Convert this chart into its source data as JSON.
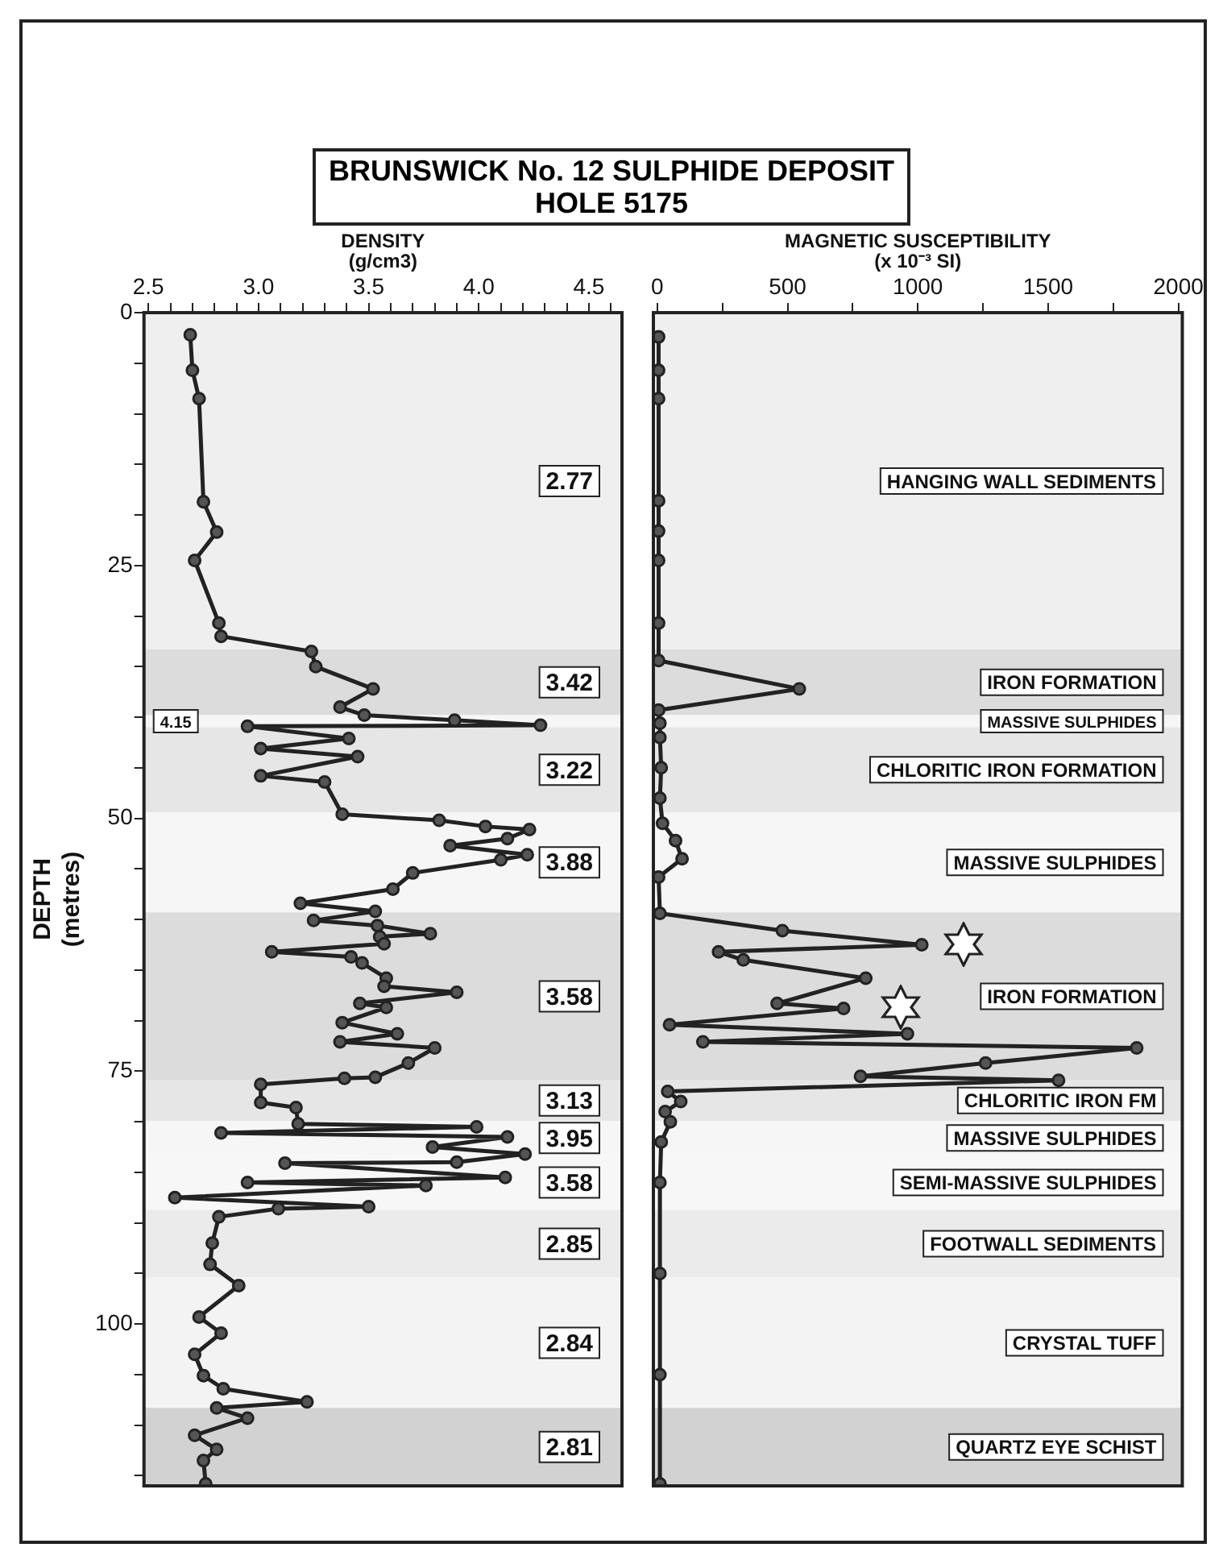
{
  "chart_data": [
    {
      "type": "line",
      "title": "BRUNSWICK No. 12 SULPHIDE DEPOSIT",
      "subtitle": "HOLE 5175",
      "xlabel": "DENSITY\n(g/cm3)",
      "ylabel": "DEPTH\n(metres)",
      "xlim": [
        2.48,
        4.65
      ],
      "xticks": [
        {
          "value": 2.5,
          "label": "2.5"
        },
        {
          "value": 2.6,
          "label": null
        },
        {
          "value": 2.7,
          "label": null
        },
        {
          "value": 2.8,
          "label": null
        },
        {
          "value": 2.9,
          "label": null
        },
        {
          "value": 3,
          "label": "3.0"
        },
        {
          "value": 3.1,
          "label": null
        },
        {
          "value": 3.2,
          "label": null
        },
        {
          "value": 3.3,
          "label": null
        },
        {
          "value": 3.4,
          "label": null
        },
        {
          "value": 3.5,
          "label": "3.5"
        },
        {
          "value": 3.6,
          "label": null
        },
        {
          "value": 3.7,
          "label": null
        },
        {
          "value": 3.8,
          "label": null
        },
        {
          "value": 3.9,
          "label": null
        },
        {
          "value": 4,
          "label": "4.0"
        },
        {
          "value": 4.1,
          "label": null
        },
        {
          "value": 4.2,
          "label": null
        },
        {
          "value": 4.3,
          "label": null
        },
        {
          "value": 4.4,
          "label": null
        },
        {
          "value": 4.5,
          "label": "4.5"
        },
        {
          "value": 4.6,
          "label": null
        }
      ],
      "ylim": [
        116,
        0
      ],
      "yticks": [
        0,
        {
          "value": 5,
          "label": null
        },
        {
          "value": 10,
          "label": null
        },
        {
          "value": 15,
          "label": null
        },
        {
          "value": 20,
          "label": null
        },
        25,
        {
          "value": 30,
          "label": null
        },
        {
          "value": 35,
          "label": null
        },
        {
          "value": 40,
          "label": null
        },
        {
          "value": 45,
          "label": null
        },
        50,
        {
          "value": 55,
          "label": null
        },
        {
          "value": 60,
          "label": null
        },
        {
          "value": 65,
          "label": null
        },
        {
          "value": 70,
          "label": null
        },
        75,
        {
          "value": 80,
          "label": null
        },
        {
          "value": 85,
          "label": null
        },
        {
          "value": 90,
          "label": null
        },
        {
          "value": 95,
          "label": null
        },
        100,
        {
          "value": 105,
          "label": null
        },
        {
          "value": 110,
          "label": null
        },
        {
          "value": 115,
          "label": null
        }
      ],
      "grid": false,
      "legend": false,
      "marker": "circle",
      "line_style": "solid",
      "series": [
        {
          "color": "#222222",
          "x": [
            2.69,
            2.7,
            2.73,
            2.75,
            2.81,
            2.71,
            2.82,
            2.83,
            3.24,
            3.26,
            3.52,
            3.37,
            3.48,
            3.89,
            4.28,
            2.95,
            3.41,
            3.01,
            3.45,
            3.01,
            3.3,
            3.38,
            3.82,
            4.03,
            4.23,
            4.13,
            3.87,
            4.22,
            4.1,
            3.7,
            3.61,
            3.19,
            3.53,
            3.25,
            3.54,
            3.78,
            3.55,
            3.57,
            3.06,
            3.42,
            3.47,
            3.58,
            3.57,
            3.9,
            3.46,
            3.58,
            3.38,
            3.63,
            3.37,
            3.8,
            3.68,
            3.53,
            3.39,
            3.01,
            3.01,
            3.17,
            3.18,
            3.99,
            2.83,
            4.13,
            3.79,
            4.21,
            3.9,
            3.12,
            4.12,
            2.95,
            3.76,
            2.62,
            3.5,
            3.09,
            2.82,
            2.79,
            2.78,
            2.91,
            2.73,
            2.83,
            2.71,
            2.75,
            2.84,
            3.22,
            2.81,
            2.95,
            2.71,
            2.81,
            2.75,
            2.76
          ],
          "values": [
            2.2,
            5.7,
            8.5,
            18.7,
            21.7,
            24.5,
            30.7,
            32,
            33.5,
            35,
            37.2,
            39,
            39.8,
            40.3,
            40.8,
            40.9,
            42.1,
            43.1,
            43.9,
            45.8,
            46.4,
            49.6,
            50.2,
            50.8,
            51.1,
            52,
            52.7,
            53.6,
            54.1,
            55.4,
            57,
            58.4,
            59.2,
            60.1,
            60.6,
            61.4,
            61.7,
            62.4,
            63.2,
            63.7,
            64.3,
            65.8,
            66.6,
            67.2,
            68.3,
            68.7,
            70.2,
            71.3,
            72.1,
            72.7,
            74.2,
            75.6,
            75.7,
            76.3,
            78.1,
            78.6,
            80.2,
            80.5,
            81.1,
            81.5,
            82.5,
            83.2,
            84,
            84.1,
            85.5,
            86,
            86.3,
            87.5,
            88.4,
            88.6,
            89.4,
            92,
            94.1,
            96.2,
            99.3,
            100.9,
            103,
            105.1,
            106.4,
            107.7,
            108.3,
            109.3,
            111,
            112.4,
            113.5,
            115.8
          ]
        }
      ],
      "bands": [
        {
          "axis": "y",
          "from": 0,
          "to": 33.3,
          "label": "2.77",
          "color": "#efefef"
        },
        {
          "axis": "y",
          "from": 33.3,
          "to": 39.8,
          "label": "3.42",
          "color": "#dcdcdc"
        },
        {
          "axis": "y",
          "from": 39.8,
          "to": 41,
          "label": "4.15",
          "color": "#f6f6f6"
        },
        {
          "axis": "y",
          "from": 41,
          "to": 49.4,
          "label": "3.22",
          "color": "#e6e6e6"
        },
        {
          "axis": "y",
          "from": 49.4,
          "to": 59.3,
          "label": "3.88",
          "color": "#f6f6f6"
        },
        {
          "axis": "y",
          "from": 59.3,
          "to": 75.9,
          "label": "3.58",
          "color": "#dcdcdc"
        },
        {
          "axis": "y",
          "from": 75.9,
          "to": 79.9,
          "label": "3.13",
          "color": "#e6e6e6"
        },
        {
          "axis": "y",
          "from": 79.9,
          "to": 83.3,
          "label": "3.95",
          "color": "#f6f6f6"
        },
        {
          "axis": "y",
          "from": 83.3,
          "to": 88.7,
          "label": "3.58",
          "color": "#f7f7f7"
        },
        {
          "axis": "y",
          "from": 88.7,
          "to": 95.4,
          "label": "2.85",
          "color": "#ebebeb"
        },
        {
          "axis": "y",
          "from": 95.4,
          "to": 108.3,
          "label": "2.84",
          "color": "#f3f3f3"
        },
        {
          "axis": "y",
          "from": 108.3,
          "to": 116,
          "label": "2.81",
          "color": "#d2d2d2"
        }
      ]
    },
    {
      "type": "line",
      "xlabel": "MAGNETIC SUSCEPTIBILITY\n(x 10⁻³ SI)",
      "xlim": [
        -15,
        2015
      ],
      "xticks": [
        0,
        {
          "value": 250,
          "label": null
        },
        500,
        {
          "value": 750,
          "label": null
        },
        1000,
        {
          "value": 1250,
          "label": null
        },
        1500,
        {
          "value": 1750,
          "label": null
        },
        2000
      ],
      "ylim": [
        116,
        0
      ],
      "tick_labels": "x",
      "grid": false,
      "legend": false,
      "marker": "circle",
      "line_style": "solid",
      "series": [
        {
          "color": "#222222",
          "x": [
            5,
            5,
            5,
            5,
            5,
            5,
            5,
            5,
            545,
            5,
            10,
            10,
            15,
            10,
            20,
            70,
            95,
            5,
            10,
            480,
            1015,
            235,
            330,
            800,
            460,
            715,
            47,
            960,
            175,
            1840,
            1260,
            780,
            1540,
            40,
            90,
            30,
            50,
            15,
            10,
            10,
            10,
            10
          ],
          "values": [
            2.4,
            5.7,
            8.5,
            18.6,
            21.6,
            24.5,
            30.7,
            34.4,
            37.2,
            39.3,
            40.6,
            42,
            45,
            48,
            50.5,
            52.2,
            54,
            55.8,
            59.4,
            61.1,
            62.5,
            63.2,
            64,
            65.8,
            68.3,
            68.8,
            70.4,
            71.3,
            72.1,
            72.7,
            74.2,
            75.5,
            75.9,
            77,
            78,
            79,
            80,
            82,
            86,
            95,
            105,
            115.8
          ]
        }
      ],
      "bands": [
        {
          "axis": "y",
          "from": 0,
          "to": 33.3,
          "label": "HANGING WALL SEDIMENTS",
          "color": "#efefef"
        },
        {
          "axis": "y",
          "from": 33.3,
          "to": 39.8,
          "label": "IRON FORMATION",
          "color": "#dcdcdc"
        },
        {
          "axis": "y",
          "from": 39.8,
          "to": 41,
          "label": "MASSIVE SULPHIDES",
          "color": "#f6f6f6"
        },
        {
          "axis": "y",
          "from": 41,
          "to": 49.4,
          "label": "CHLORITIC IRON FORMATION",
          "color": "#e6e6e6"
        },
        {
          "axis": "y",
          "from": 49.4,
          "to": 59.3,
          "label": "MASSIVE SULPHIDES",
          "color": "#f6f6f6"
        },
        {
          "axis": "y",
          "from": 59.3,
          "to": 75.9,
          "label": "IRON FORMATION",
          "color": "#dcdcdc"
        },
        {
          "axis": "y",
          "from": 75.9,
          "to": 79.9,
          "label": "CHLORITIC IRON FM",
          "color": "#e6e6e6"
        },
        {
          "axis": "y",
          "from": 79.9,
          "to": 83.3,
          "label": "MASSIVE SULPHIDES",
          "color": "#f6f6f6"
        },
        {
          "axis": "y",
          "from": 83.3,
          "to": 88.7,
          "label": "SEMI-MASSIVE SULPHIDES",
          "color": "#f7f7f7"
        },
        {
          "axis": "y",
          "from": 88.7,
          "to": 95.4,
          "label": "FOOTWALL SEDIMENTS",
          "color": "#ebebeb"
        },
        {
          "axis": "y",
          "from": 95.4,
          "to": 108.3,
          "label": "CRYSTAL TUFF",
          "color": "#f3f3f3"
        },
        {
          "axis": "y",
          "from": 108.3,
          "to": 116,
          "label": "QUARTZ EYE SCHIST",
          "color": "#d2d2d2"
        }
      ]
    }
  ]
}
